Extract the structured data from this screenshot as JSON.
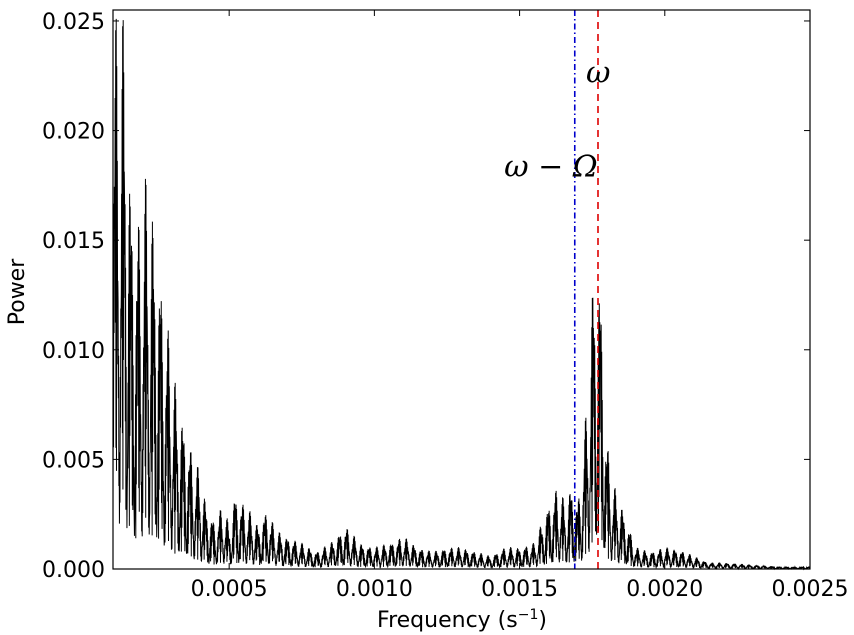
{
  "chart_data": {
    "type": "line",
    "title": "",
    "xlabel": "Frequency (s",
    "xlabel_exponent": "−1",
    "xlabel_suffix": ")",
    "ylabel": "Power",
    "xlim": [
      0.0001,
      0.0025
    ],
    "ylim": [
      0.0,
      0.0255
    ],
    "x_ticks": [
      0.0005,
      0.001,
      0.0015,
      0.002,
      0.0025
    ],
    "x_tick_labels": [
      "0.0005",
      "0.0010",
      "0.0015",
      "0.0020",
      "0.0025"
    ],
    "y_ticks": [
      0.0,
      0.005,
      0.01,
      0.015,
      0.02,
      0.025
    ],
    "y_tick_labels": [
      "0.000",
      "0.005",
      "0.010",
      "0.015",
      "0.020",
      "0.025"
    ],
    "grid": false,
    "series_color": "#000000",
    "envelope": {
      "x": [
        0.0001,
        0.00011,
        0.00012,
        0.00014,
        0.00016,
        0.00018,
        0.0002,
        0.00022,
        0.00024,
        0.00026,
        0.00028,
        0.0003,
        0.00032,
        0.00034,
        0.00036,
        0.00038,
        0.0004,
        0.00042,
        0.00045,
        0.00048,
        0.0005,
        0.00052,
        0.00055,
        0.00058,
        0.0006,
        0.00063,
        0.00066,
        0.0007,
        0.00075,
        0.0008,
        0.00085,
        0.0009,
        0.00095,
        0.001,
        0.00105,
        0.0011,
        0.00115,
        0.0012,
        0.00125,
        0.0013,
        0.00135,
        0.0014,
        0.00145,
        0.0015,
        0.00155,
        0.0016,
        0.00163,
        0.00166,
        0.00168,
        0.0017,
        0.00172,
        0.00174,
        0.00176,
        0.00178,
        0.0018,
        0.00182,
        0.00185,
        0.0019,
        0.00195,
        0.002,
        0.00205,
        0.0021,
        0.00215,
        0.0022,
        0.0023,
        0.0024,
        0.0025
      ],
      "y": [
        0.0255,
        0.0255,
        0.0255,
        0.0255,
        0.018,
        0.016,
        0.017,
        0.0185,
        0.016,
        0.014,
        0.012,
        0.01,
        0.008,
        0.007,
        0.006,
        0.005,
        0.0045,
        0.003,
        0.0022,
        0.003,
        0.002,
        0.0035,
        0.003,
        0.0025,
        0.002,
        0.0028,
        0.0018,
        0.0015,
        0.0012,
        0.0008,
        0.0012,
        0.002,
        0.0012,
        0.001,
        0.0012,
        0.0015,
        0.001,
        0.0008,
        0.001,
        0.001,
        0.0008,
        0.0006,
        0.001,
        0.001,
        0.0012,
        0.003,
        0.0038,
        0.003,
        0.004,
        0.003,
        0.0055,
        0.0095,
        0.0155,
        0.013,
        0.006,
        0.004,
        0.003,
        0.001,
        0.0008,
        0.001,
        0.0009,
        0.0006,
        0.0003,
        0.0003,
        0.0002,
        0.0001,
        0.0001
      ]
    },
    "vlines": [
      {
        "x": 0.00169,
        "color": "#0000cc",
        "style": "dashdot",
        "label": "ω − Ω"
      },
      {
        "x": 0.00177,
        "color": "#dd0000",
        "style": "dashed",
        "label": "ω"
      }
    ],
    "annotations": [
      {
        "text": "ω − Ω",
        "x": 0.00155,
        "y": 0.0179
      },
      {
        "text": "ω",
        "x": 0.00177,
        "y": 0.0222
      }
    ]
  }
}
